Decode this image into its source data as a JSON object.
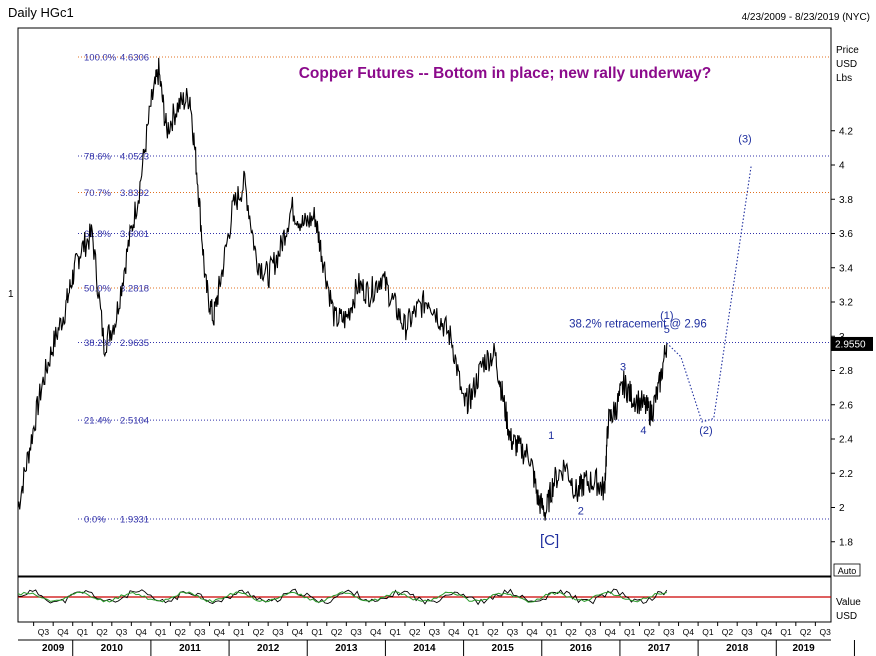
{
  "header": {
    "symbol": "Daily HGc1",
    "date_range": "4/23/2009 - 8/23/2019 (NYC)"
  },
  "chart_data": {
    "type": "line",
    "title": "Copper Futures -- Bottom in place; new rally underway?",
    "ylabel_lines": [
      "Price",
      "USD",
      "Lbs"
    ],
    "ylim": [
      1.6,
      4.8
    ],
    "xlim": [
      2009.3,
      2019.7
    ],
    "yticks": [
      1.8,
      2,
      2.2,
      2.4,
      2.6,
      2.8,
      3,
      3.2,
      3.4,
      3.6,
      3.8,
      4,
      4.2
    ],
    "ytick_labels": [
      "1.8",
      "2",
      "2.2",
      "2.4",
      "2.6",
      "2.8",
      "3",
      "3.2",
      "3.4",
      "3.6",
      "3.8",
      "4",
      "4.2"
    ],
    "last_price": "2.9550",
    "left_axis_label": "1",
    "fib_levels": [
      {
        "pct": "100.0%",
        "value": 4.6306,
        "label": "4.6306"
      },
      {
        "pct": "78.6%",
        "value": 4.0523,
        "label": "4.0523"
      },
      {
        "pct": "70.7%",
        "value": 3.8392,
        "label": "3.8392"
      },
      {
        "pct": "61.8%",
        "value": 3.6001,
        "label": "3.6001"
      },
      {
        "pct": "50.0%",
        "value": 3.2818,
        "label": "3.2818"
      },
      {
        "pct": "38.2%",
        "value": 2.9635,
        "label": "2.9635"
      },
      {
        "pct": "21.4%",
        "value": 2.5104,
        "label": "2.5104"
      },
      {
        "pct": "0.0%",
        "value": 1.9331,
        "label": "1.9331"
      }
    ],
    "price_series": {
      "name": "HGc1",
      "points": [
        [
          2009.3,
          2.0
        ],
        [
          2009.45,
          2.35
        ],
        [
          2009.6,
          2.7
        ],
        [
          2009.75,
          2.95
        ],
        [
          2009.9,
          3.15
        ],
        [
          2010.0,
          3.35
        ],
        [
          2010.1,
          3.5
        ],
        [
          2010.25,
          3.6
        ],
        [
          2010.4,
          2.95
        ],
        [
          2010.55,
          3.1
        ],
        [
          2010.7,
          3.5
        ],
        [
          2010.85,
          3.85
        ],
        [
          2011.0,
          4.35
        ],
        [
          2011.1,
          4.55
        ],
        [
          2011.2,
          4.2
        ],
        [
          2011.35,
          4.35
        ],
        [
          2011.5,
          4.4
        ],
        [
          2011.6,
          3.9
        ],
        [
          2011.7,
          3.3
        ],
        [
          2011.8,
          3.1
        ],
        [
          2011.9,
          3.35
        ],
        [
          2012.05,
          3.75
        ],
        [
          2012.2,
          3.9
        ],
        [
          2012.35,
          3.45
        ],
        [
          2012.5,
          3.35
        ],
        [
          2012.65,
          3.5
        ],
        [
          2012.8,
          3.75
        ],
        [
          2012.95,
          3.65
        ],
        [
          2013.1,
          3.7
        ],
        [
          2013.2,
          3.45
        ],
        [
          2013.35,
          3.1
        ],
        [
          2013.5,
          3.1
        ],
        [
          2013.65,
          3.3
        ],
        [
          2013.8,
          3.25
        ],
        [
          2013.95,
          3.35
        ],
        [
          2014.1,
          3.2
        ],
        [
          2014.25,
          3.05
        ],
        [
          2014.4,
          3.15
        ],
        [
          2014.55,
          3.22
        ],
        [
          2014.7,
          3.1
        ],
        [
          2014.85,
          2.98
        ],
        [
          2015.0,
          2.6
        ],
        [
          2015.1,
          2.65
        ],
        [
          2015.25,
          2.85
        ],
        [
          2015.4,
          2.9
        ],
        [
          2015.5,
          2.65
        ],
        [
          2015.6,
          2.4
        ],
        [
          2015.7,
          2.35
        ],
        [
          2015.85,
          2.3
        ],
        [
          2015.95,
          2.05
        ],
        [
          2016.05,
          1.97
        ],
        [
          2016.15,
          2.15
        ],
        [
          2016.3,
          2.25
        ],
        [
          2016.45,
          2.08
        ],
        [
          2016.55,
          2.15
        ],
        [
          2016.7,
          2.15
        ],
        [
          2016.8,
          2.1
        ],
        [
          2016.85,
          2.5
        ],
        [
          2016.95,
          2.58
        ],
        [
          2017.05,
          2.72
        ],
        [
          2017.15,
          2.65
        ],
        [
          2017.3,
          2.6
        ],
        [
          2017.4,
          2.55
        ],
        [
          2017.5,
          2.7
        ],
        [
          2017.6,
          2.96
        ]
      ]
    },
    "projection": {
      "name": "projection",
      "points": [
        [
          2017.6,
          2.96
        ],
        [
          2017.78,
          2.88
        ],
        [
          2018.05,
          2.5
        ],
        [
          2018.2,
          2.52
        ],
        [
          2018.68,
          4.0
        ]
      ]
    },
    "wave_labels": [
      {
        "text": "(1)",
        "x": 2017.6,
        "y": 3.1
      },
      {
        "text": "5",
        "x": 2017.6,
        "y": 3.02
      },
      {
        "text": "3",
        "x": 2017.04,
        "y": 2.8
      },
      {
        "text": "4",
        "x": 2017.3,
        "y": 2.43
      },
      {
        "text": "1",
        "x": 2016.12,
        "y": 2.4
      },
      {
        "text": "2",
        "x": 2016.5,
        "y": 1.96
      },
      {
        "text": "[C]",
        "x": 2016.1,
        "y": 1.78
      },
      {
        "text": "(2)",
        "x": 2018.1,
        "y": 2.43
      },
      {
        "text": "(3)",
        "x": 2018.6,
        "y": 4.13
      }
    ],
    "annotation": {
      "text": "38.2% retracement @ 2.96",
      "x": 2016.35,
      "y": 3.05
    },
    "x_quarters": [
      "Q3",
      "Q4",
      "Q1",
      "Q2",
      "Q3",
      "Q4",
      "Q1",
      "Q2",
      "Q3",
      "Q4",
      "Q1",
      "Q2",
      "Q3",
      "Q4",
      "Q1",
      "Q2",
      "Q3",
      "Q4",
      "Q1",
      "Q2",
      "Q3",
      "Q4",
      "Q1",
      "Q2",
      "Q3",
      "Q4",
      "Q1",
      "Q2",
      "Q3",
      "Q4",
      "Q1",
      "Q2",
      "Q3",
      "Q4",
      "Q1",
      "Q2",
      "Q3",
      "Q4",
      "Q1",
      "Q2",
      "Q3",
      "Q4",
      "Q1",
      "Q2",
      "Q3"
    ],
    "x_years": [
      "2009",
      "2010",
      "2011",
      "2012",
      "2013",
      "2014",
      "2015",
      "2016",
      "2017",
      "2018",
      "2019"
    ],
    "auto_button_label": "Auto",
    "indicator": {
      "ylabel_lines": [
        "Value",
        "USD"
      ],
      "line_color": "#cc0000",
      "series_colors": [
        "#000000",
        "#2a9a2a"
      ]
    },
    "colors": {
      "title": "#8b0a8b",
      "fib_line": "#e07020",
      "fib_line_alt": "#3333aa",
      "wave_labels": "#1f2f9f",
      "price": "#000000",
      "projection": "#1f2f9f"
    }
  }
}
